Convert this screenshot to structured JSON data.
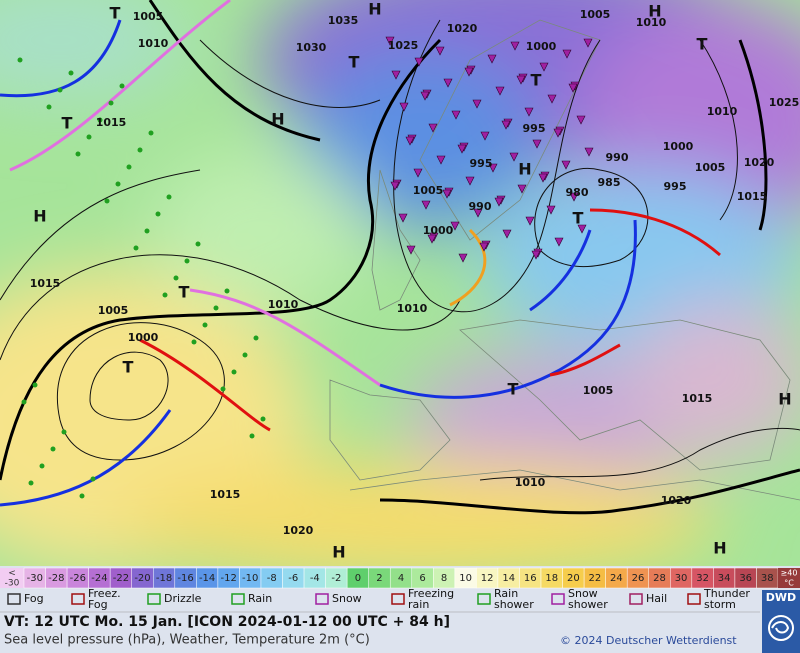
{
  "map": {
    "pressure_labels": [
      "1005",
      "1010",
      "1035",
      "1030",
      "1025",
      "1020",
      "1000",
      "1005",
      "1010",
      "995",
      "990",
      "985",
      "980",
      "995",
      "1000",
      "1005",
      "1010",
      "1020",
      "1015",
      "1025",
      "1015",
      "1015",
      "1005",
      "1000",
      "1010",
      "1005",
      "1000",
      "995",
      "990",
      "1010",
      "1005",
      "1015",
      "1010",
      "1015",
      "1020",
      "1020"
    ],
    "centers": [
      "H",
      "H",
      "H",
      "H",
      "H",
      "H",
      "H",
      "H",
      "T",
      "T",
      "T",
      "T",
      "T",
      "T",
      "T",
      "T",
      "T"
    ]
  },
  "scale": {
    "low_label": [
      "<",
      "-30"
    ],
    "values": [
      -30,
      -28,
      -26,
      -24,
      -22,
      -20,
      -18,
      -16,
      -14,
      -12,
      -10,
      -8,
      -6,
      -4,
      -2,
      0,
      2,
      4,
      6,
      8,
      10,
      12,
      14,
      16,
      18,
      20,
      22,
      24,
      26,
      28,
      30,
      32,
      34,
      36,
      38
    ],
    "colors": [
      "#e6b3e6",
      "#d99ae0",
      "#c985db",
      "#b56fd3",
      "#a05fcb",
      "#8566d0",
      "#6f76d8",
      "#5f86e0",
      "#5a95e8",
      "#62a6ee",
      "#72b8f2",
      "#84ccf2",
      "#95daef",
      "#a3e6e6",
      "#b0eed6",
      "#5fcf6c",
      "#7ad87a",
      "#93e08a",
      "#acea9c",
      "#cdf2b4",
      "#fbfbe6",
      "#f8f6c2",
      "#f7eea2",
      "#f6e482",
      "#f6da64",
      "#f6cd4c",
      "#f5bd44",
      "#f4a94a",
      "#ef9352",
      "#e67c58",
      "#df6662",
      "#d65564",
      "#c84c5c",
      "#b84654",
      "#a8524c"
    ],
    "high_label": [
      "≥40",
      "°C"
    ],
    "low_color": "#f2cdf2",
    "high_color": "#963a3a"
  },
  "legend": [
    [
      "Fog"
    ],
    [
      "Freez.",
      "Fog"
    ],
    [
      "Drizzle"
    ],
    [
      "Rain"
    ],
    [
      "Snow"
    ],
    [
      "Freezing",
      "rain"
    ],
    [
      "Rain",
      "shower"
    ],
    [
      "Snow",
      "shower"
    ],
    [
      "Hail"
    ],
    [
      "Thunder",
      "storm"
    ]
  ],
  "footer": {
    "valid_time": "VT: 12 UTC Mo.  15 Jan. [ICON 2024-01-12  00 UTC + 84 h]",
    "description": "Sea level pressure (hPa), Weather, Temperature 2m (°C)",
    "copyright": "© 2024 Deutscher Wetterdienst",
    "logo": "DWD"
  }
}
